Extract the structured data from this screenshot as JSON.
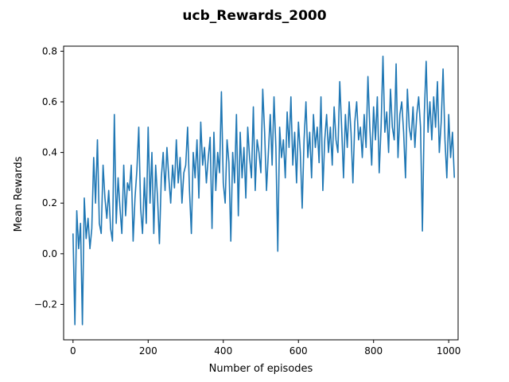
{
  "chart_data": {
    "type": "line",
    "title": "ucb_Rewards_2000",
    "xlabel": "Number of episodes",
    "ylabel": "Mean Rewards",
    "xlim": [
      -25,
      1025
    ],
    "ylim": [
      -0.34,
      0.82
    ],
    "xticks": [
      0,
      200,
      400,
      600,
      800,
      1000
    ],
    "yticks": [
      -0.2,
      0.0,
      0.2,
      0.4,
      0.6,
      0.8
    ],
    "xtick_labels": [
      "0",
      "200",
      "400",
      "600",
      "800",
      "1000"
    ],
    "ytick_labels": [
      "−0.2",
      "0.0",
      "0.2",
      "0.4",
      "0.6",
      "0.8"
    ],
    "grid": false,
    "legend": false,
    "line_color": "#1f77b4",
    "series": [
      {
        "x_start": 0,
        "x_step": 5,
        "values": [
          0.08,
          -0.28,
          0.17,
          0.02,
          0.12,
          -0.28,
          0.22,
          0.06,
          0.14,
          0.02,
          0.1,
          0.38,
          0.2,
          0.45,
          0.12,
          0.08,
          0.35,
          0.22,
          0.14,
          0.25,
          0.1,
          0.05,
          0.55,
          0.12,
          0.3,
          0.18,
          0.08,
          0.35,
          0.15,
          0.28,
          0.25,
          0.35,
          0.05,
          0.22,
          0.33,
          0.5,
          0.18,
          0.08,
          0.3,
          0.12,
          0.5,
          0.2,
          0.4,
          0.08,
          0.35,
          0.22,
          0.04,
          0.3,
          0.4,
          0.25,
          0.42,
          0.3,
          0.2,
          0.35,
          0.26,
          0.45,
          0.28,
          0.38,
          0.2,
          0.32,
          0.35,
          0.5,
          0.25,
          0.08,
          0.4,
          0.3,
          0.45,
          0.22,
          0.52,
          0.35,
          0.42,
          0.28,
          0.38,
          0.46,
          0.1,
          0.48,
          0.25,
          0.4,
          0.32,
          0.64,
          0.28,
          0.2,
          0.45,
          0.36,
          0.05,
          0.4,
          0.28,
          0.55,
          0.15,
          0.48,
          0.3,
          0.42,
          0.22,
          0.5,
          0.38,
          0.3,
          0.58,
          0.25,
          0.45,
          0.4,
          0.32,
          0.65,
          0.48,
          0.25,
          0.4,
          0.55,
          0.35,
          0.62,
          0.42,
          0.01,
          0.5,
          0.38,
          0.45,
          0.3,
          0.56,
          0.42,
          0.62,
          0.35,
          0.48,
          0.28,
          0.52,
          0.4,
          0.18,
          0.45,
          0.6,
          0.38,
          0.48,
          0.3,
          0.55,
          0.42,
          0.5,
          0.36,
          0.62,
          0.25,
          0.45,
          0.55,
          0.4,
          0.5,
          0.35,
          0.58,
          0.45,
          0.4,
          0.68,
          0.5,
          0.3,
          0.55,
          0.42,
          0.6,
          0.48,
          0.28,
          0.52,
          0.6,
          0.45,
          0.5,
          0.38,
          0.55,
          0.42,
          0.7,
          0.5,
          0.35,
          0.58,
          0.45,
          0.62,
          0.32,
          0.5,
          0.78,
          0.48,
          0.56,
          0.4,
          0.65,
          0.5,
          0.45,
          0.75,
          0.38,
          0.55,
          0.6,
          0.48,
          0.3,
          0.65,
          0.5,
          0.45,
          0.58,
          0.42,
          0.55,
          0.62,
          0.5,
          0.09,
          0.55,
          0.76,
          0.48,
          0.6,
          0.45,
          0.62,
          0.5,
          0.68,
          0.4,
          0.52,
          0.73,
          0.45,
          0.3,
          0.55,
          0.38,
          0.48,
          0.3
        ]
      }
    ]
  }
}
